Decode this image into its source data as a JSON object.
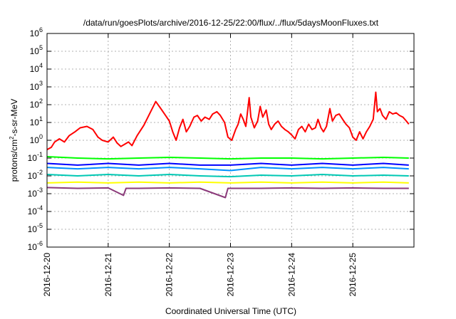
{
  "chart_data": {
    "type": "line",
    "title": "/data/run/goesPlots/archive/2016-12-25/22:00/flux/../flux/5daysMoonFluxes.txt",
    "xlabel": "Coordinated Universal Time (UTC)",
    "ylabel": {
      "prefix": "protons/cm",
      "superscript": "2",
      "suffix": "-s-sr-MeV"
    },
    "y_scale": "log",
    "ylim": [
      1e-06,
      1000000.0
    ],
    "y_ticks": [
      {
        "value": 1e-06,
        "base": "10",
        "exp": "-6"
      },
      {
        "value": 1e-05,
        "base": "10",
        "exp": "-5"
      },
      {
        "value": 0.0001,
        "base": "10",
        "exp": "-4"
      },
      {
        "value": 0.001,
        "base": "10",
        "exp": "-3"
      },
      {
        "value": 0.01,
        "base": "10",
        "exp": "-2"
      },
      {
        "value": 0.1,
        "base": "10",
        "exp": "-1"
      },
      {
        "value": 1,
        "base": "10",
        "exp": "0"
      },
      {
        "value": 10.0,
        "base": "10",
        "exp": "1"
      },
      {
        "value": 100.0,
        "base": "10",
        "exp": "2"
      },
      {
        "value": 1000.0,
        "base": "10",
        "exp": "3"
      },
      {
        "value": 10000.0,
        "base": "10",
        "exp": "4"
      },
      {
        "value": 100000.0,
        "base": "10",
        "exp": "5"
      },
      {
        "value": 1000000.0,
        "base": "10",
        "exp": "6"
      }
    ],
    "xlim": [
      "2016-12-20",
      "2016-12-26"
    ],
    "x_ticks": [
      "2016-12-20",
      "2016-12-21",
      "2016-12-22",
      "2016-12-23",
      "2016-12-24",
      "2016-12-25"
    ],
    "grid": true,
    "legend": "none",
    "series": [
      {
        "color": "#ff0000",
        "points": [
          [
            "2016-12-20 00:00",
            0.3
          ],
          [
            "2016-12-20 01:40",
            0.4
          ],
          [
            "2016-12-20 03:00",
            0.8
          ],
          [
            "2016-12-20 04:50",
            1.2
          ],
          [
            "2016-12-20 06:50",
            0.8
          ],
          [
            "2016-12-20 08:40",
            1.8
          ],
          [
            "2016-12-20 11:00",
            3
          ],
          [
            "2016-12-20 13:00",
            5
          ],
          [
            "2016-12-20 15:40",
            6
          ],
          [
            "2016-12-20 18:00",
            4
          ],
          [
            "2016-12-20 20:00",
            1.5
          ],
          [
            "2016-12-20 21:40",
            1
          ],
          [
            "2016-12-21 00:00",
            0.8
          ],
          [
            "2016-12-21 02:00",
            1.5
          ],
          [
            "2016-12-21 03:30",
            0.7
          ],
          [
            "2016-12-21 05:00",
            0.45
          ],
          [
            "2016-12-21 06:30",
            0.6
          ],
          [
            "2016-12-21 08:00",
            0.8
          ],
          [
            "2016-12-21 09:20",
            0.5
          ],
          [
            "2016-12-21 11:20",
            1.8
          ],
          [
            "2016-12-21 14:00",
            7
          ],
          [
            "2016-12-21 16:40",
            40
          ],
          [
            "2016-12-21 18:40",
            150
          ],
          [
            "2016-12-21 20:40",
            60
          ],
          [
            "2016-12-21 22:30",
            25
          ],
          [
            "2016-12-22 00:00",
            12
          ],
          [
            "2016-12-22 01:20",
            3
          ],
          [
            "2016-12-22 02:40",
            1
          ],
          [
            "2016-12-22 04:00",
            5
          ],
          [
            "2016-12-22 05:20",
            15
          ],
          [
            "2016-12-22 06:40",
            3
          ],
          [
            "2016-12-22 08:00",
            6
          ],
          [
            "2016-12-22 09:40",
            20
          ],
          [
            "2016-12-22 11:00",
            25
          ],
          [
            "2016-12-22 12:30",
            12
          ],
          [
            "2016-12-22 14:00",
            20
          ],
          [
            "2016-12-22 15:40",
            15
          ],
          [
            "2016-12-22 17:00",
            30
          ],
          [
            "2016-12-22 18:40",
            40
          ],
          [
            "2016-12-22 20:00",
            25
          ],
          [
            "2016-12-22 21:40",
            10
          ],
          [
            "2016-12-22 23:00",
            1.5
          ],
          [
            "2016-12-23 00:30",
            1
          ],
          [
            "2016-12-23 02:00",
            4
          ],
          [
            "2016-12-23 03:00",
            8
          ],
          [
            "2016-12-23 04:00",
            30
          ],
          [
            "2016-12-23 05:00",
            15
          ],
          [
            "2016-12-23 06:00",
            6
          ],
          [
            "2016-12-23 07:20",
            250
          ],
          [
            "2016-12-23 08:00",
            20
          ],
          [
            "2016-12-23 09:20",
            5
          ],
          [
            "2016-12-23 10:40",
            12
          ],
          [
            "2016-12-23 11:40",
            80
          ],
          [
            "2016-12-23 12:40",
            20
          ],
          [
            "2016-12-23 14:00",
            50
          ],
          [
            "2016-12-23 15:00",
            8
          ],
          [
            "2016-12-23 16:00",
            4
          ],
          [
            "2016-12-23 17:20",
            8
          ],
          [
            "2016-12-23 18:40",
            12
          ],
          [
            "2016-12-23 20:00",
            6
          ],
          [
            "2016-12-23 21:20",
            4
          ],
          [
            "2016-12-23 22:40",
            3
          ],
          [
            "2016-12-24 00:00",
            2
          ],
          [
            "2016-12-24 01:20",
            1.2
          ],
          [
            "2016-12-24 02:40",
            4
          ],
          [
            "2016-12-24 04:00",
            6
          ],
          [
            "2016-12-24 05:20",
            3
          ],
          [
            "2016-12-24 06:40",
            8
          ],
          [
            "2016-12-24 08:00",
            4
          ],
          [
            "2016-12-24 09:20",
            5
          ],
          [
            "2016-12-24 10:20",
            15
          ],
          [
            "2016-12-24 11:30",
            5
          ],
          [
            "2016-12-24 12:30",
            3
          ],
          [
            "2016-12-24 13:40",
            6
          ],
          [
            "2016-12-24 15:00",
            60
          ],
          [
            "2016-12-24 16:00",
            12
          ],
          [
            "2016-12-24 17:20",
            25
          ],
          [
            "2016-12-24 18:40",
            30
          ],
          [
            "2016-12-24 20:00",
            15
          ],
          [
            "2016-12-24 21:20",
            8
          ],
          [
            "2016-12-24 22:40",
            5
          ],
          [
            "2016-12-25 00:00",
            1.5
          ],
          [
            "2016-12-25 01:20",
            1
          ],
          [
            "2016-12-25 02:40",
            3
          ],
          [
            "2016-12-25 04:00",
            1.2
          ],
          [
            "2016-12-25 05:20",
            3
          ],
          [
            "2016-12-25 06:40",
            6
          ],
          [
            "2016-12-25 08:00",
            15
          ],
          [
            "2016-12-25 09:00",
            500
          ],
          [
            "2016-12-25 09:40",
            40
          ],
          [
            "2016-12-25 10:40",
            60
          ],
          [
            "2016-12-25 11:40",
            25
          ],
          [
            "2016-12-25 13:00",
            15
          ],
          [
            "2016-12-25 14:20",
            40
          ],
          [
            "2016-12-25 15:40",
            30
          ],
          [
            "2016-12-25 17:00",
            35
          ],
          [
            "2016-12-25 18:20",
            25
          ],
          [
            "2016-12-25 19:40",
            20
          ],
          [
            "2016-12-25 21:00",
            12
          ],
          [
            "2016-12-25 22:00",
            8
          ]
        ]
      },
      {
        "color": "#00ff00",
        "points": [
          [
            "2016-12-20 00:00",
            0.12
          ],
          [
            "2016-12-20 12:00",
            0.1
          ],
          [
            "2016-12-21 00:00",
            0.09
          ],
          [
            "2016-12-21 12:00",
            0.1
          ],
          [
            "2016-12-22 00:00",
            0.11
          ],
          [
            "2016-12-22 12:00",
            0.1
          ],
          [
            "2016-12-23 00:00",
            0.09
          ],
          [
            "2016-12-23 12:00",
            0.1
          ],
          [
            "2016-12-24 00:00",
            0.1
          ],
          [
            "2016-12-24 12:00",
            0.09
          ],
          [
            "2016-12-25 00:00",
            0.1
          ],
          [
            "2016-12-25 12:00",
            0.11
          ],
          [
            "2016-12-25 22:00",
            0.1
          ]
        ]
      },
      {
        "color": "#0000ff",
        "points": [
          [
            "2016-12-20 00:00",
            0.05
          ],
          [
            "2016-12-20 12:00",
            0.04
          ],
          [
            "2016-12-21 00:00",
            0.05
          ],
          [
            "2016-12-21 12:00",
            0.04
          ],
          [
            "2016-12-22 00:00",
            0.05
          ],
          [
            "2016-12-22 12:00",
            0.04
          ],
          [
            "2016-12-23 00:00",
            0.04
          ],
          [
            "2016-12-23 12:00",
            0.05
          ],
          [
            "2016-12-24 00:00",
            0.04
          ],
          [
            "2016-12-24 12:00",
            0.05
          ],
          [
            "2016-12-25 00:00",
            0.04
          ],
          [
            "2016-12-25 12:00",
            0.05
          ],
          [
            "2016-12-25 22:00",
            0.04
          ]
        ]
      },
      {
        "color": "#0090ff",
        "points": [
          [
            "2016-12-20 00:00",
            0.03
          ],
          [
            "2016-12-20 12:00",
            0.025
          ],
          [
            "2016-12-21 00:00",
            0.03
          ],
          [
            "2016-12-21 12:00",
            0.025
          ],
          [
            "2016-12-22 00:00",
            0.03
          ],
          [
            "2016-12-22 12:00",
            0.025
          ],
          [
            "2016-12-23 00:00",
            0.02
          ],
          [
            "2016-12-23 12:00",
            0.03
          ],
          [
            "2016-12-24 00:00",
            0.025
          ],
          [
            "2016-12-24 12:00",
            0.03
          ],
          [
            "2016-12-25 00:00",
            0.025
          ],
          [
            "2016-12-25 12:00",
            0.03
          ],
          [
            "2016-12-25 22:00",
            0.025
          ]
        ]
      },
      {
        "color": "#00c8b4",
        "points": [
          [
            "2016-12-20 00:00",
            0.012
          ],
          [
            "2016-12-20 12:00",
            0.01
          ],
          [
            "2016-12-21 00:00",
            0.012
          ],
          [
            "2016-12-21 12:00",
            0.01
          ],
          [
            "2016-12-22 00:00",
            0.012
          ],
          [
            "2016-12-22 12:00",
            0.01
          ],
          [
            "2016-12-23 00:00",
            0.009
          ],
          [
            "2016-12-23 12:00",
            0.011
          ],
          [
            "2016-12-24 00:00",
            0.01
          ],
          [
            "2016-12-24 12:00",
            0.012
          ],
          [
            "2016-12-25 00:00",
            0.01
          ],
          [
            "2016-12-25 12:00",
            0.011
          ],
          [
            "2016-12-25 22:00",
            0.01
          ]
        ]
      },
      {
        "color": "#ffff00",
        "points": [
          [
            "2016-12-20 00:00",
            0.004
          ],
          [
            "2016-12-20 12:00",
            0.0045
          ],
          [
            "2016-12-21 00:00",
            0.004
          ],
          [
            "2016-12-21 12:00",
            0.0045
          ],
          [
            "2016-12-22 00:00",
            0.004
          ],
          [
            "2016-12-22 12:00",
            0.0045
          ],
          [
            "2016-12-23 00:00",
            0.004
          ],
          [
            "2016-12-23 12:00",
            0.0045
          ],
          [
            "2016-12-24 00:00",
            0.004
          ],
          [
            "2016-12-24 12:00",
            0.0045
          ],
          [
            "2016-12-25 00:00",
            0.004
          ],
          [
            "2016-12-25 12:00",
            0.0045
          ],
          [
            "2016-12-25 22:00",
            0.004
          ]
        ]
      },
      {
        "color": "#8b3a7a",
        "points": [
          [
            "2016-12-20 00:00",
            0.0022
          ],
          [
            "2016-12-20 12:00",
            0.002
          ],
          [
            "2016-12-21 00:00",
            0.0021
          ],
          [
            "2016-12-21 06:00",
            0.0008
          ],
          [
            "2016-12-21 07:00",
            0.002
          ],
          [
            "2016-12-21 12:00",
            0.002
          ],
          [
            "2016-12-22 00:00",
            0.0021
          ],
          [
            "2016-12-22 12:00",
            0.002
          ],
          [
            "2016-12-22 22:00",
            0.0006
          ],
          [
            "2016-12-22 23:00",
            0.002
          ],
          [
            "2016-12-23 12:00",
            0.002
          ],
          [
            "2016-12-24 00:00",
            0.0021
          ],
          [
            "2016-12-24 12:00",
            0.002
          ],
          [
            "2016-12-25 00:00",
            0.0021
          ],
          [
            "2016-12-25 12:00",
            0.002
          ],
          [
            "2016-12-25 22:00",
            0.002
          ]
        ]
      }
    ]
  }
}
